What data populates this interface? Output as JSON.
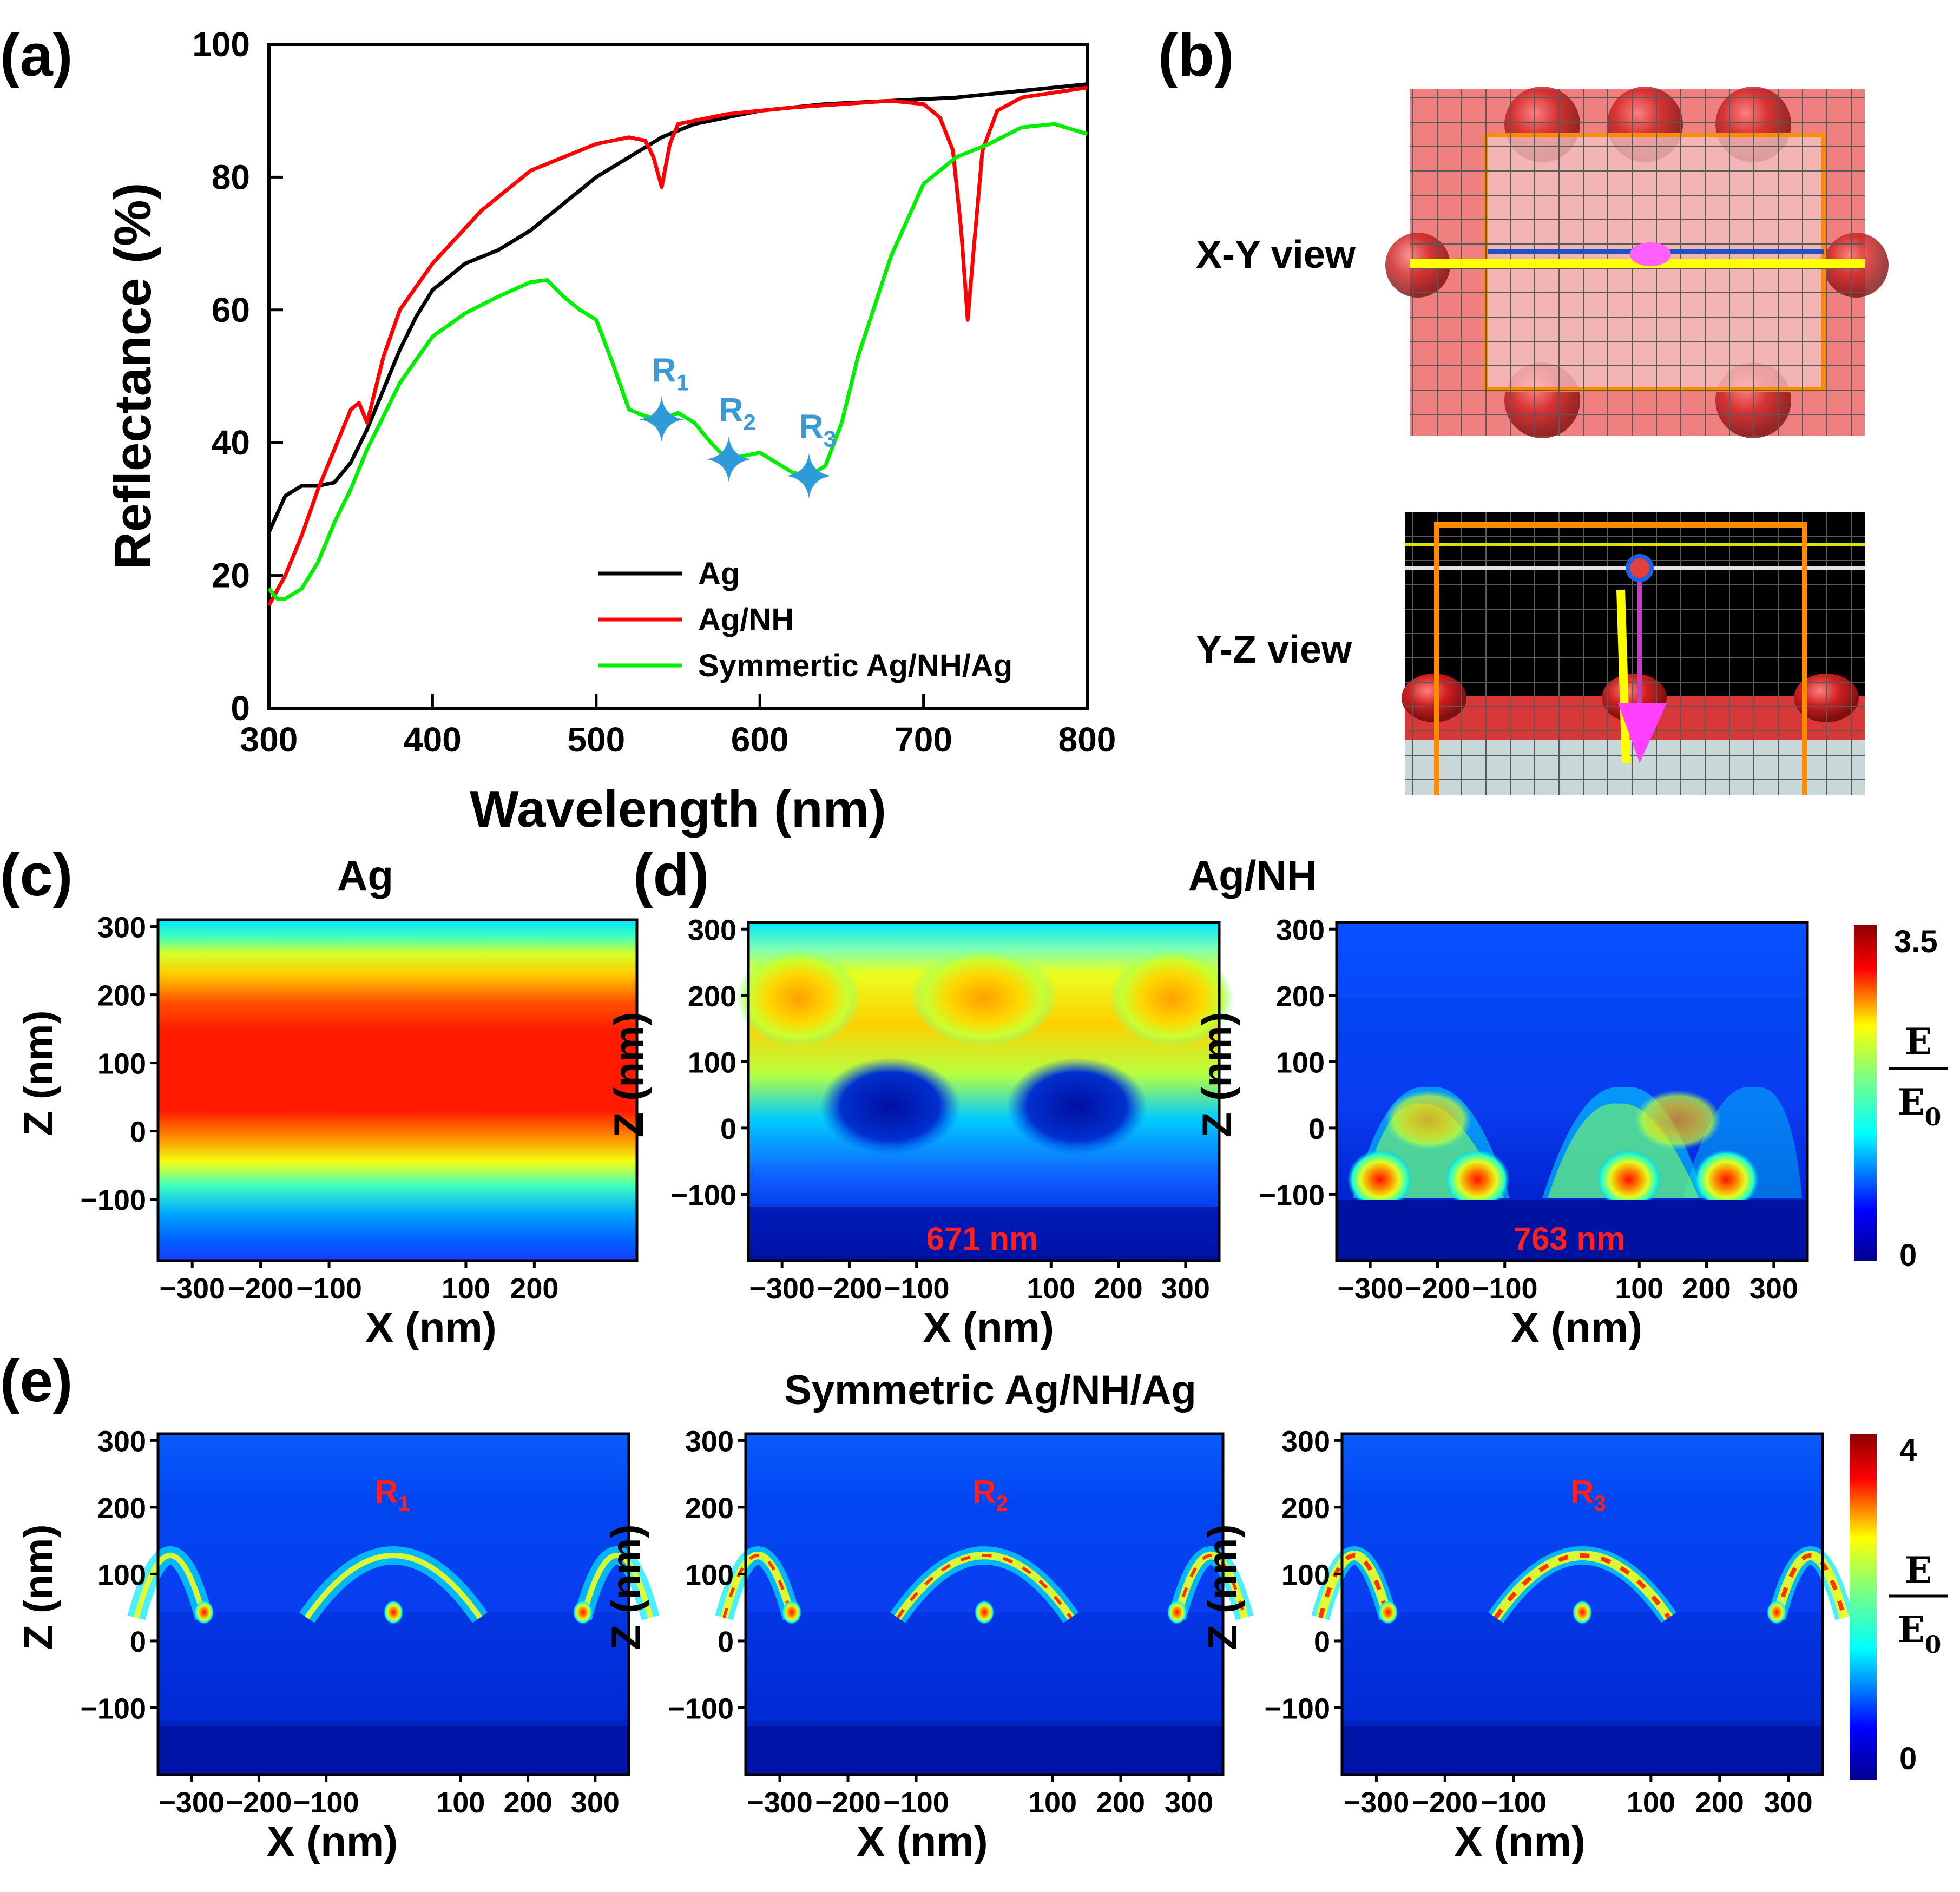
{
  "panels": {
    "a": "(a)",
    "b": "(b)",
    "c": "(c)",
    "d": "(d)",
    "e": "(e)"
  },
  "chart_data": [
    {
      "id": "a",
      "type": "line",
      "title": "",
      "xlabel": "Wavelength (nm)",
      "ylabel": "Reflectance (%)",
      "xlim": [
        300,
        800
      ],
      "ylim": [
        0,
        100
      ],
      "xticks": [
        300,
        400,
        500,
        600,
        700,
        800
      ],
      "yticks": [
        0,
        20,
        40,
        60,
        80,
        100
      ],
      "legend_position": "bottom-right",
      "series": [
        {
          "name": "Ag",
          "color": "#000000",
          "x": [
            300,
            310,
            320,
            330,
            340,
            350,
            360,
            370,
            380,
            390,
            400,
            420,
            440,
            460,
            480,
            500,
            520,
            540,
            560,
            580,
            600,
            640,
            680,
            720,
            760,
            800
          ],
          "y": [
            26.5,
            32,
            33.5,
            33.5,
            34,
            37,
            42,
            48,
            54,
            59,
            63,
            67,
            69,
            72,
            76,
            80,
            83,
            86,
            88,
            89,
            90,
            91,
            91.5,
            92,
            93,
            94
          ]
        },
        {
          "name": "Ag/NH",
          "color": "#ff0000",
          "x": [
            300,
            310,
            320,
            330,
            340,
            350,
            355,
            360,
            370,
            380,
            400,
            430,
            460,
            500,
            520,
            530,
            535,
            540,
            545,
            550,
            580,
            620,
            680,
            700,
            710,
            718,
            723,
            727,
            731,
            736,
            745,
            760,
            800
          ],
          "y": [
            15.5,
            20,
            26,
            33,
            39,
            45,
            46,
            43,
            53,
            60,
            67,
            75,
            81,
            85,
            86,
            85.5,
            83,
            78.5,
            85,
            88,
            89.5,
            90.5,
            91.5,
            91,
            89,
            84,
            72,
            58.5,
            70,
            84,
            90,
            92,
            93.5
          ]
        },
        {
          "name": "Symmertic Ag/NH/Ag",
          "color": "#00ee00",
          "x": [
            300,
            305,
            310,
            320,
            330,
            340,
            350,
            360,
            370,
            380,
            400,
            420,
            440,
            460,
            470,
            480,
            490,
            500,
            510,
            520,
            530,
            540,
            550,
            560,
            570,
            580,
            590,
            600,
            610,
            620,
            630,
            640,
            650,
            660,
            680,
            700,
            720,
            740,
            760,
            780,
            800
          ],
          "y": [
            18,
            16.5,
            16.5,
            18,
            22,
            28,
            33,
            39,
            44,
            49,
            56,
            59.5,
            62,
            64.2,
            64.5,
            62,
            60,
            58.5,
            52,
            45,
            44,
            43.5,
            44.5,
            43,
            40,
            37.5,
            38,
            38.5,
            37,
            35.5,
            35,
            36.5,
            43,
            53,
            68,
            79,
            83,
            85,
            87.5,
            88,
            86.5
          ]
        }
      ],
      "annotations": [
        {
          "label": "R",
          "sub": "1",
          "x": 540,
          "y": 43.5
        },
        {
          "label": "R",
          "sub": "2",
          "x": 581,
          "y": 37.5
        },
        {
          "label": "R",
          "sub": "3",
          "x": 630,
          "y": 35
        }
      ]
    },
    {
      "id": "c",
      "type": "heatmap",
      "title": "Ag",
      "xlabel": "X (nm)",
      "ylabel": "Z (nm)",
      "xticks": [
        -300,
        -200,
        -100,
        100,
        200
      ],
      "yticks": [
        300,
        200,
        100,
        0,
        -100
      ],
      "xlim": [
        -350,
        350
      ],
      "ylim": [
        -190,
        310
      ]
    },
    {
      "id": "d1",
      "type": "heatmap",
      "title": "Ag/NH",
      "annotation": "671 nm",
      "xlabel": "X (nm)",
      "ylabel": "Z (nm)",
      "xticks": [
        -300,
        -200,
        -100,
        100,
        200,
        300
      ],
      "yticks": [
        300,
        200,
        100,
        0,
        -100
      ],
      "xlim": [
        -350,
        350
      ],
      "ylim": [
        -200,
        310
      ]
    },
    {
      "id": "d2",
      "type": "heatmap",
      "title": "",
      "annotation": "763 nm",
      "xlabel": "X (nm)",
      "ylabel": "Z (nm)",
      "xticks": [
        -300,
        -200,
        -100,
        100,
        200,
        300
      ],
      "yticks": [
        300,
        200,
        100,
        0,
        -100
      ],
      "xlim": [
        -350,
        350
      ],
      "ylim": [
        -200,
        310
      ],
      "colorbar": {
        "min": "0",
        "max": "3.5",
        "num": "E",
        "den": "E",
        "den_sub": "0"
      }
    },
    {
      "id": "e1",
      "type": "heatmap",
      "title": "Symmetric Ag/NH/Ag",
      "annotation_label": "R",
      "annotation_sub": "1",
      "xlabel": "X (nm)",
      "ylabel": "Z (nm)",
      "xticks": [
        -300,
        -200,
        -100,
        100,
        200,
        300
      ],
      "yticks": [
        300,
        200,
        100,
        0,
        -100
      ],
      "xlim": [
        -350,
        350
      ],
      "ylim": [
        -200,
        310
      ]
    },
    {
      "id": "e2",
      "type": "heatmap",
      "annotation_label": "R",
      "annotation_sub": "2",
      "xlabel": "X (nm)",
      "ylabel": "Z (nm)",
      "xticks": [
        -300,
        -200,
        -100,
        100,
        200,
        300
      ],
      "yticks": [
        300,
        200,
        100,
        0,
        -100
      ],
      "xlim": [
        -350,
        350
      ],
      "ylim": [
        -200,
        310
      ]
    },
    {
      "id": "e3",
      "type": "heatmap",
      "annotation_label": "R",
      "annotation_sub": "3",
      "xlabel": "X (nm)",
      "ylabel": "Z (nm)",
      "xticks": [
        -300,
        -200,
        -100,
        100,
        200,
        300
      ],
      "yticks": [
        300,
        200,
        100,
        0,
        -100
      ],
      "xlim": [
        -350,
        350
      ],
      "ylim": [
        -200,
        310
      ],
      "colorbar": {
        "min": "0",
        "max": "4",
        "num": "E",
        "den": "E",
        "den_sub": "0"
      }
    }
  ],
  "panel_b": {
    "xy_view": "X-Y view",
    "yz_view": "Y-Z view"
  }
}
